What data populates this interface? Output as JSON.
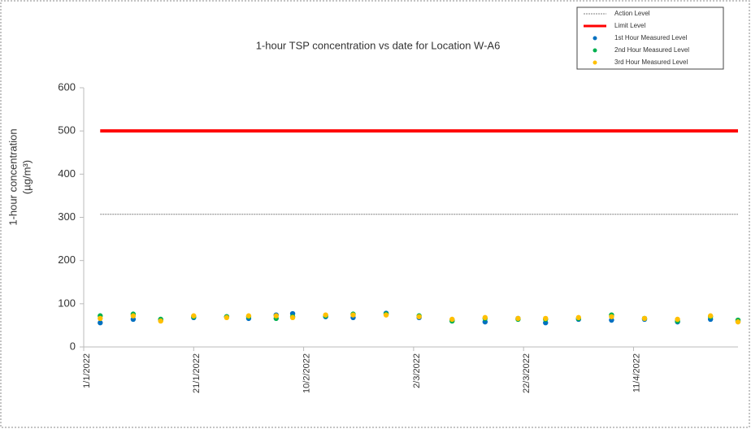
{
  "chart_data": {
    "type": "scatter",
    "title": "1-hour TSP concentration vs date for Location  W-A6",
    "ylabel": [
      "1-hour concentration",
      "(µg/m³)"
    ],
    "ylim": [
      0,
      600
    ],
    "yticks": [
      0,
      100,
      200,
      300,
      400,
      500,
      600
    ],
    "xlim": [
      "1/1/2022",
      "30/4/2022"
    ],
    "xticks": [
      "1/1/2022",
      "21/1/2022",
      "10/2/2022",
      "2/3/2022",
      "22/3/2022",
      "11/4/2022"
    ],
    "x": [
      "4/1/2022",
      "10/1/2022",
      "15/1/2022",
      "21/1/2022",
      "27/1/2022",
      "31/1/2022",
      "5/2/2022",
      "8/2/2022",
      "14/2/2022",
      "19/2/2022",
      "25/2/2022",
      "3/3/2022",
      "9/3/2022",
      "15/3/2022",
      "21/3/2022",
      "26/3/2022",
      "1/4/2022",
      "7/4/2022",
      "13/4/2022",
      "19/4/2022",
      "25/4/2022",
      "30/4/2022"
    ],
    "legend": "top-right",
    "series": [
      {
        "name": "Action Level",
        "color": "#7f7f7f",
        "mode": "line",
        "dash": true,
        "x": [
          "4/1/2022",
          "30/4/2022"
        ],
        "values": [
          307,
          307
        ]
      },
      {
        "name": "Limit Level",
        "color": "#ff0000",
        "mode": "line",
        "dash": false,
        "x": [
          "4/1/2022",
          "30/4/2022"
        ],
        "values": [
          500,
          500
        ]
      },
      {
        "name": "1st Hour Measured Level",
        "color": "#0070c0",
        "mode": "markers",
        "values": [
          56,
          64,
          62,
          68,
          70,
          66,
          74,
          77,
          70,
          68,
          78,
          68,
          62,
          58,
          66,
          56,
          64,
          62,
          64,
          58,
          64,
          60
        ]
      },
      {
        "name": "2nd Hour Measured Level",
        "color": "#00b050",
        "mode": "markers",
        "values": [
          72,
          76,
          64,
          70,
          70,
          70,
          66,
          70,
          72,
          76,
          76,
          72,
          60,
          66,
          64,
          64,
          66,
          74,
          66,
          60,
          70,
          62
        ]
      },
      {
        "name": "3rd Hour Measured Level",
        "color": "#ffc000",
        "mode": "markers",
        "values": [
          66,
          72,
          60,
          72,
          68,
          72,
          72,
          68,
          74,
          74,
          74,
          70,
          64,
          68,
          66,
          66,
          68,
          70,
          66,
          64,
          72,
          58
        ]
      }
    ]
  }
}
